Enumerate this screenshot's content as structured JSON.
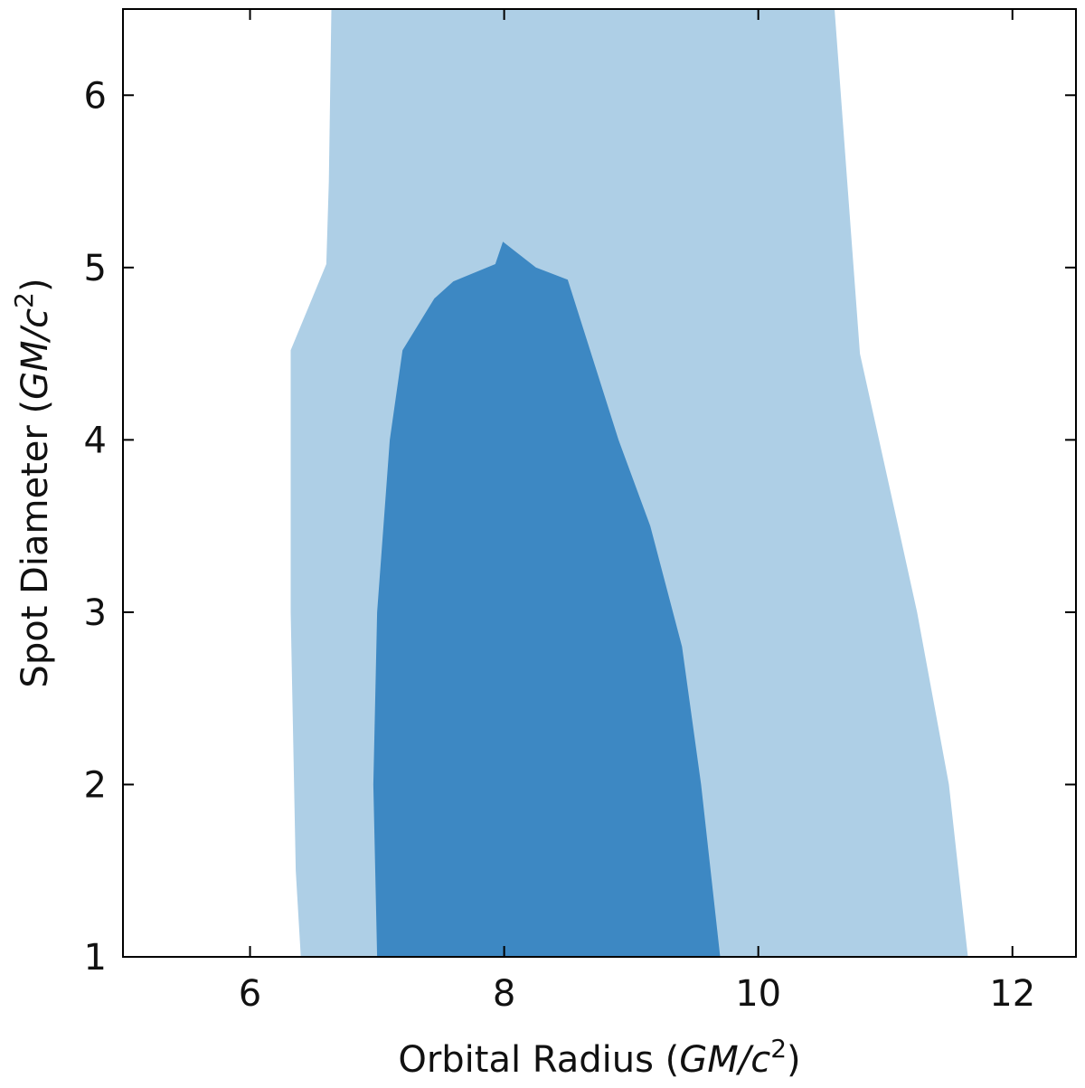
{
  "chart_data": {
    "type": "contour",
    "title": "",
    "xlabel": "Orbital Radius",
    "xlabel_unit_a": "GM/c",
    "xlabel_unit_exp": "2",
    "ylabel": "Spot Diameter",
    "ylabel_unit_a": "GM/c",
    "ylabel_unit_exp": "2",
    "xlim": [
      5.0,
      12.5
    ],
    "ylim": [
      1.0,
      6.5
    ],
    "x_ticks": [
      6,
      8,
      10,
      12
    ],
    "y_ticks": [
      1,
      2,
      3,
      4,
      5,
      6
    ],
    "grid": false,
    "colors": {
      "outer": "#aecfe6",
      "inner": "#3d88c3",
      "axis": "#000000"
    },
    "outer_region": [
      [
        6.64,
        6.5
      ],
      [
        6.62,
        5.5
      ],
      [
        6.6,
        5.02
      ],
      [
        6.32,
        4.52
      ],
      [
        6.32,
        3.0
      ],
      [
        6.36,
        1.5
      ],
      [
        6.4,
        1.0
      ],
      [
        11.65,
        1.0
      ],
      [
        11.5,
        2.0
      ],
      [
        11.25,
        3.0
      ],
      [
        11.1,
        3.5
      ],
      [
        10.8,
        4.5
      ],
      [
        10.7,
        5.5
      ],
      [
        10.6,
        6.5
      ]
    ],
    "inner_region": [
      [
        7.2,
        4.52
      ],
      [
        7.45,
        4.82
      ],
      [
        7.6,
        4.92
      ],
      [
        7.93,
        5.02
      ],
      [
        7.99,
        5.15
      ],
      [
        8.25,
        5.0
      ],
      [
        8.5,
        4.93
      ],
      [
        8.9,
        4.0
      ],
      [
        9.15,
        3.5
      ],
      [
        9.4,
        2.8
      ],
      [
        9.55,
        2.0
      ],
      [
        9.7,
        1.0
      ],
      [
        7.0,
        1.0
      ],
      [
        6.97,
        2.0
      ],
      [
        7.0,
        3.0
      ],
      [
        7.1,
        4.0
      ]
    ]
  }
}
